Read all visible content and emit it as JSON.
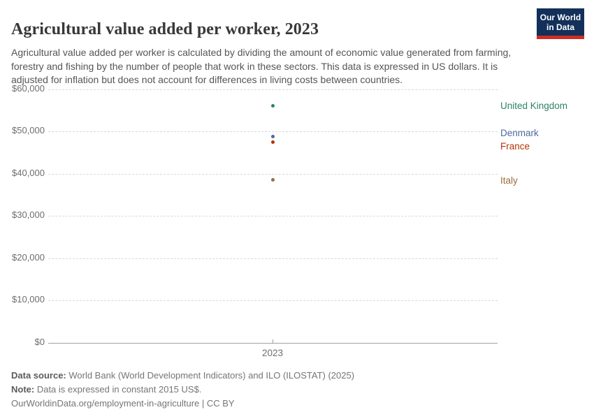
{
  "header": {
    "title": "Agricultural value added per worker, 2023",
    "subtitle": "Agricultural value added per worker is calculated by dividing the amount of economic value generated from farming, forestry and fishing by the number of people that work in these sectors. This data is expressed in US dollars. It is adjusted for inflation but does not account for differences in living costs between countries.",
    "logo": {
      "line1": "Our World",
      "line2": "in Data",
      "bg_color": "#12305a",
      "stripe_color": "#cf2d24"
    }
  },
  "chart_data": {
    "type": "scatter",
    "x": [
      2023
    ],
    "x_tick_label": "2023",
    "series": [
      {
        "name": "United Kingdom",
        "values": [
          56000
        ],
        "color": "#2C8465",
        "label_dy": 0
      },
      {
        "name": "Denmark",
        "values": [
          48800
        ],
        "color": "#4C6A9C",
        "label_dy": -4
      },
      {
        "name": "France",
        "values": [
          47400
        ],
        "color": "#B13507",
        "label_dy": 6
      },
      {
        "name": "Italy",
        "values": [
          38500
        ],
        "color": "#996D39",
        "label_dy": 1
      }
    ],
    "ylim": [
      0,
      60000
    ],
    "y_ticks": [
      0,
      10000,
      20000,
      30000,
      40000,
      50000,
      60000
    ],
    "y_tick_labels": [
      "$0",
      "$10,000",
      "$20,000",
      "$30,000",
      "$40,000",
      "$50,000",
      "$60,000"
    ],
    "grid": "horizontal-dashed",
    "legend": "entity-labels-right"
  },
  "footer": {
    "source_label": "Data source:",
    "source_text": " World Bank (World Development Indicators) and ILO (ILOSTAT) (2025)",
    "note_label": "Note:",
    "note_text": " Data is expressed in constant 2015 US$.",
    "citation_link": "OurWorldinData.org/employment-in-agriculture",
    "citation_suffix": " | CC BY"
  }
}
